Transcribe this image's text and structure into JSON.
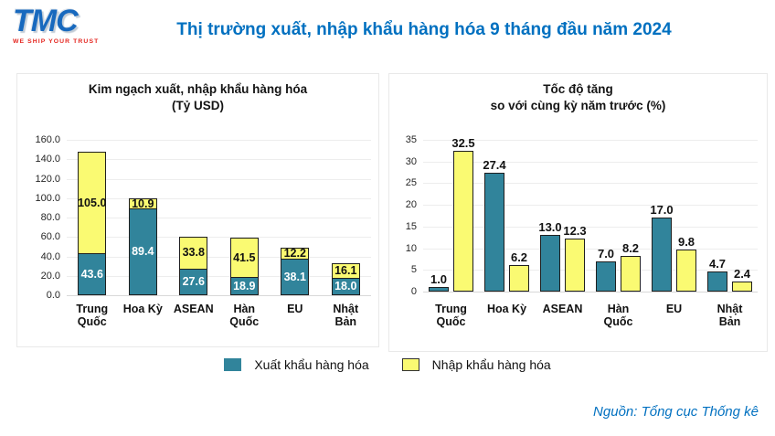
{
  "header": {
    "logo": {
      "text": "TMC",
      "tagline": "WE SHIP YOUR TRUST"
    },
    "title": "Thị trường xuất, nhập khẩu hàng hóa 9 tháng đầu năm 2024"
  },
  "colors": {
    "series": [
      "#31849B",
      "#FAFA72"
    ],
    "series_label_colors": [
      "#ffffff",
      "#111111"
    ],
    "title_blue": "#0070C0",
    "logo_blue": "#1869BE",
    "logo_red": "#E4251F"
  },
  "legend": [
    {
      "label": "Xuất khẩu hàng hóa",
      "color": "#31849B"
    },
    {
      "label": "Nhập khẩu hàng hóa",
      "color": "#FAFA72"
    }
  ],
  "footer": {
    "source": "Nguồn: Tổng cục Thống kê"
  },
  "chart_data": [
    {
      "type": "bar",
      "subtype": "stacked",
      "title": "Kim ngạch xuất, nhập khẩu hàng hóa",
      "subtitle": "(Tỷ USD)",
      "categories": [
        "Trung Quốc",
        "Hoa Kỳ",
        "ASEAN",
        "Hàn Quốc",
        "EU",
        "Nhật Bản"
      ],
      "series": [
        {
          "name": "Xuất khẩu hàng hóa",
          "values": [
            43.6,
            89.4,
            27.6,
            18.9,
            38.1,
            18.0
          ]
        },
        {
          "name": "Nhập khẩu hàng hóa",
          "values": [
            105.0,
            10.9,
            33.8,
            41.5,
            12.2,
            16.1
          ]
        }
      ],
      "ylim": [
        0,
        160
      ],
      "ytick_step": 20,
      "ytick_decimals": 1,
      "grid": true,
      "value_labels": "inside",
      "legend_position": "bottom-shared"
    },
    {
      "type": "bar",
      "subtype": "grouped",
      "title": "Tốc độ tăng",
      "subtitle": "so với cùng kỳ năm trước (%)",
      "categories": [
        "Trung Quốc",
        "Hoa Kỳ",
        "ASEAN",
        "Hàn Quốc",
        "EU",
        "Nhật Bản"
      ],
      "series": [
        {
          "name": "Xuất khẩu hàng hóa",
          "values": [
            1.0,
            27.4,
            13.0,
            7.0,
            17.0,
            4.7
          ]
        },
        {
          "name": "Nhập khẩu hàng hóa",
          "values": [
            32.5,
            6.2,
            12.3,
            8.2,
            9.8,
            2.4
          ]
        }
      ],
      "ylim": [
        0,
        35
      ],
      "ytick_step": 5,
      "ytick_decimals": 0,
      "grid": true,
      "value_labels": "above",
      "legend_position": "bottom-shared"
    }
  ]
}
